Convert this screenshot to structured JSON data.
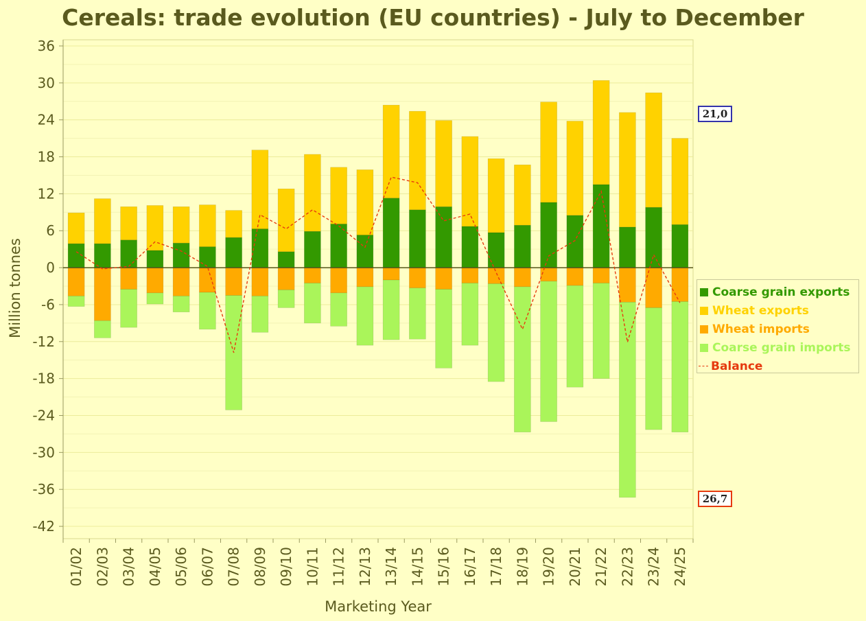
{
  "title": "Cereals: trade evolution (EU countries) - July to December",
  "chart_data": {
    "type": "bar",
    "title": "Cereals: trade evolution (EU countries) - July to December",
    "xlabel": "Marketing Year",
    "ylabel": "Million tonnes",
    "ylim": [
      -44,
      37
    ],
    "yticks": [
      36,
      30,
      24,
      18,
      12,
      6,
      0,
      -6,
      -12,
      -18,
      -24,
      -30,
      -36,
      -42
    ],
    "ytick_labels": [
      "36",
      "30",
      "24",
      "18",
      "12",
      "6",
      "0",
      "-6",
      "-12",
      "-18",
      "-24",
      "-30",
      "-36",
      "-42"
    ],
    "grid": true,
    "legend_position": "right",
    "stacked": true,
    "categories": [
      "01/02",
      "02/03",
      "03/04",
      "04/05",
      "05/06",
      "06/07",
      "07/08",
      "08/09",
      "09/10",
      "10/11",
      "11/12",
      "12/13",
      "13/14",
      "14/15",
      "15/16",
      "16/17",
      "17/18",
      "18/19",
      "19/20",
      "20/21",
      "21/22",
      "22/23",
      "23/24",
      "24/25"
    ],
    "series": [
      {
        "name": "Coarse grain exports",
        "color": "#339900",
        "kind": "bar",
        "values": [
          3.9,
          3.9,
          4.5,
          2.8,
          4.0,
          3.4,
          4.9,
          6.3,
          2.6,
          5.9,
          7.1,
          5.3,
          11.3,
          9.4,
          9.9,
          6.7,
          5.7,
          6.9,
          10.6,
          8.5,
          13.5,
          6.6,
          9.8,
          7.0
        ]
      },
      {
        "name": "Wheat exports",
        "color": "#ffd200",
        "kind": "bar",
        "values": [
          5.0,
          7.3,
          5.4,
          7.3,
          5.9,
          6.8,
          4.4,
          12.8,
          10.2,
          12.5,
          9.2,
          10.6,
          15.1,
          16.0,
          14.0,
          14.6,
          12.0,
          9.8,
          16.3,
          15.3,
          16.9,
          18.6,
          18.6,
          14.0
        ]
      },
      {
        "name": "Wheat imports",
        "color": "#ffaa00",
        "kind": "bar",
        "values": [
          -4.6,
          -8.6,
          -3.5,
          -4.1,
          -4.6,
          -4.0,
          -4.5,
          -4.6,
          -3.6,
          -2.5,
          -4.1,
          -3.1,
          -2.0,
          -3.3,
          -3.5,
          -2.5,
          -2.6,
          -3.1,
          -2.2,
          -2.9,
          -2.5,
          -5.6,
          -6.5,
          -5.5
        ]
      },
      {
        "name": "Coarse grain imports",
        "color": "#aaf55a",
        "kind": "bar",
        "values": [
          -1.7,
          -2.8,
          -6.2,
          -1.8,
          -2.6,
          -6.0,
          -18.6,
          -5.9,
          -2.9,
          -6.5,
          -5.4,
          -9.5,
          -9.7,
          -8.3,
          -12.8,
          -10.1,
          -15.9,
          -23.6,
          -22.8,
          -16.5,
          -15.5,
          -31.7,
          -19.8,
          -21.2
        ]
      },
      {
        "name": "Balance",
        "color": "#e63a0f",
        "kind": "line",
        "values": [
          2.6,
          -0.2,
          0.2,
          4.2,
          2.7,
          0.2,
          -13.8,
          8.6,
          6.3,
          9.4,
          6.8,
          3.3,
          14.7,
          13.8,
          7.6,
          8.7,
          -0.8,
          -10.0,
          1.9,
          4.4,
          12.4,
          -12.1,
          2.1,
          -5.7
        ]
      }
    ],
    "annotations": [
      {
        "text": "21,0",
        "at_value": 25.0,
        "border": "#3333aa"
      },
      {
        "text": "26,7",
        "at_value": -37.5,
        "border": "#e63a0f"
      }
    ]
  },
  "legend": {
    "items": [
      {
        "label": "Coarse grain exports",
        "color": "#339900",
        "text_color": "#339900"
      },
      {
        "label": "Wheat exports",
        "color": "#ffd200",
        "text_color": "#ffd200"
      },
      {
        "label": "Wheat imports",
        "color": "#ffaa00",
        "text_color": "#ffaa00"
      },
      {
        "label": "Coarse grain imports",
        "color": "#aaf55a",
        "text_color": "#aaf55a"
      },
      {
        "label": "Balance",
        "color": "#e63a0f",
        "text_color": "#e63a0f"
      }
    ]
  },
  "colors": {
    "background": "#ffffc6",
    "grid": "#ecec9a",
    "axis_text": "#5a5a1e"
  }
}
